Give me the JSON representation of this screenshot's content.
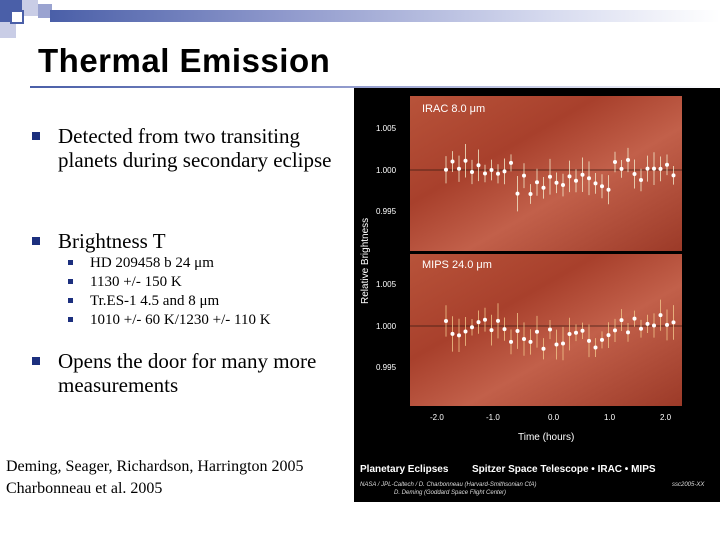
{
  "slide": {
    "title": "Thermal Emission",
    "bullets": [
      {
        "text": "Detected from two transiting planets during secondary eclipse"
      },
      {
        "text": "Brightness T"
      },
      {
        "text": "Opens the door for many more measurements"
      }
    ],
    "sub_bullets": [
      "HD 209458 b 24 μm",
      "1130 +/- 150 K",
      "Tr.ES-1 4.5 and 8 μm",
      "1010 +/- 60 K/1230 +/- 110 K"
    ],
    "credits": [
      "Deming, Seager, Richardson, Harrington  2005",
      "Charbonneau et al. 2005"
    ]
  },
  "figure": {
    "panel_top_label": "IRAC  8.0 μm",
    "panel_bottom_label": "MIPS  24.0 μm",
    "y_axis_label": "Relative Brightness",
    "x_axis_label": "Time (hours)",
    "y_ticks_top": [
      "1.005",
      "1.000",
      "0.995"
    ],
    "y_ticks_bottom": [
      "1.005",
      "1.000",
      "0.995"
    ],
    "x_ticks": [
      "-2.0",
      "-1.0",
      "0.0",
      "1.0",
      "2.0"
    ],
    "footer_title": "Planetary Eclipses",
    "footer_mission": "Spitzer Space Telescope • IRAC • MIPS",
    "footer_credit_line1": "NASA / JPL-Caltech / D. Charbonneau (Harvard-Smithsonian CfA)",
    "footer_credit_line2": "D. Deming (Goddard Space Flight Center)",
    "footer_code": "ssc2005-XX",
    "colors": {
      "panel_red": "#b54a32",
      "bullet_blue": "#1c2f7e"
    }
  }
}
